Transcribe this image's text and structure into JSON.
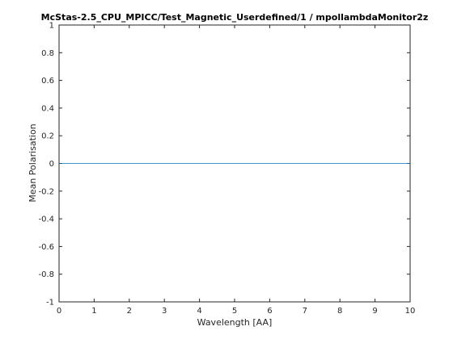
{
  "chart_data": {
    "type": "line",
    "title": "McStas-2.5_CPU_MPICC/Test_Magnetic_Userdefined/1 / mpollambdaMonitor2z",
    "xlabel": "Wavelength [AA]",
    "ylabel": "Mean Polarisation",
    "xlim": [
      0,
      10
    ],
    "ylim": [
      -1,
      1
    ],
    "x_ticks": [
      "0",
      "1",
      "2",
      "3",
      "4",
      "5",
      "6",
      "7",
      "8",
      "9",
      "10"
    ],
    "y_ticks": [
      "-1",
      "-0.8",
      "-0.6",
      "-0.4",
      "-0.2",
      "0",
      "0.2",
      "0.4",
      "0.6",
      "0.8",
      "1"
    ],
    "grid": false,
    "series": [
      {
        "x": [
          0,
          10
        ],
        "values": [
          0,
          0
        ],
        "color": "#0072bd"
      }
    ]
  }
}
